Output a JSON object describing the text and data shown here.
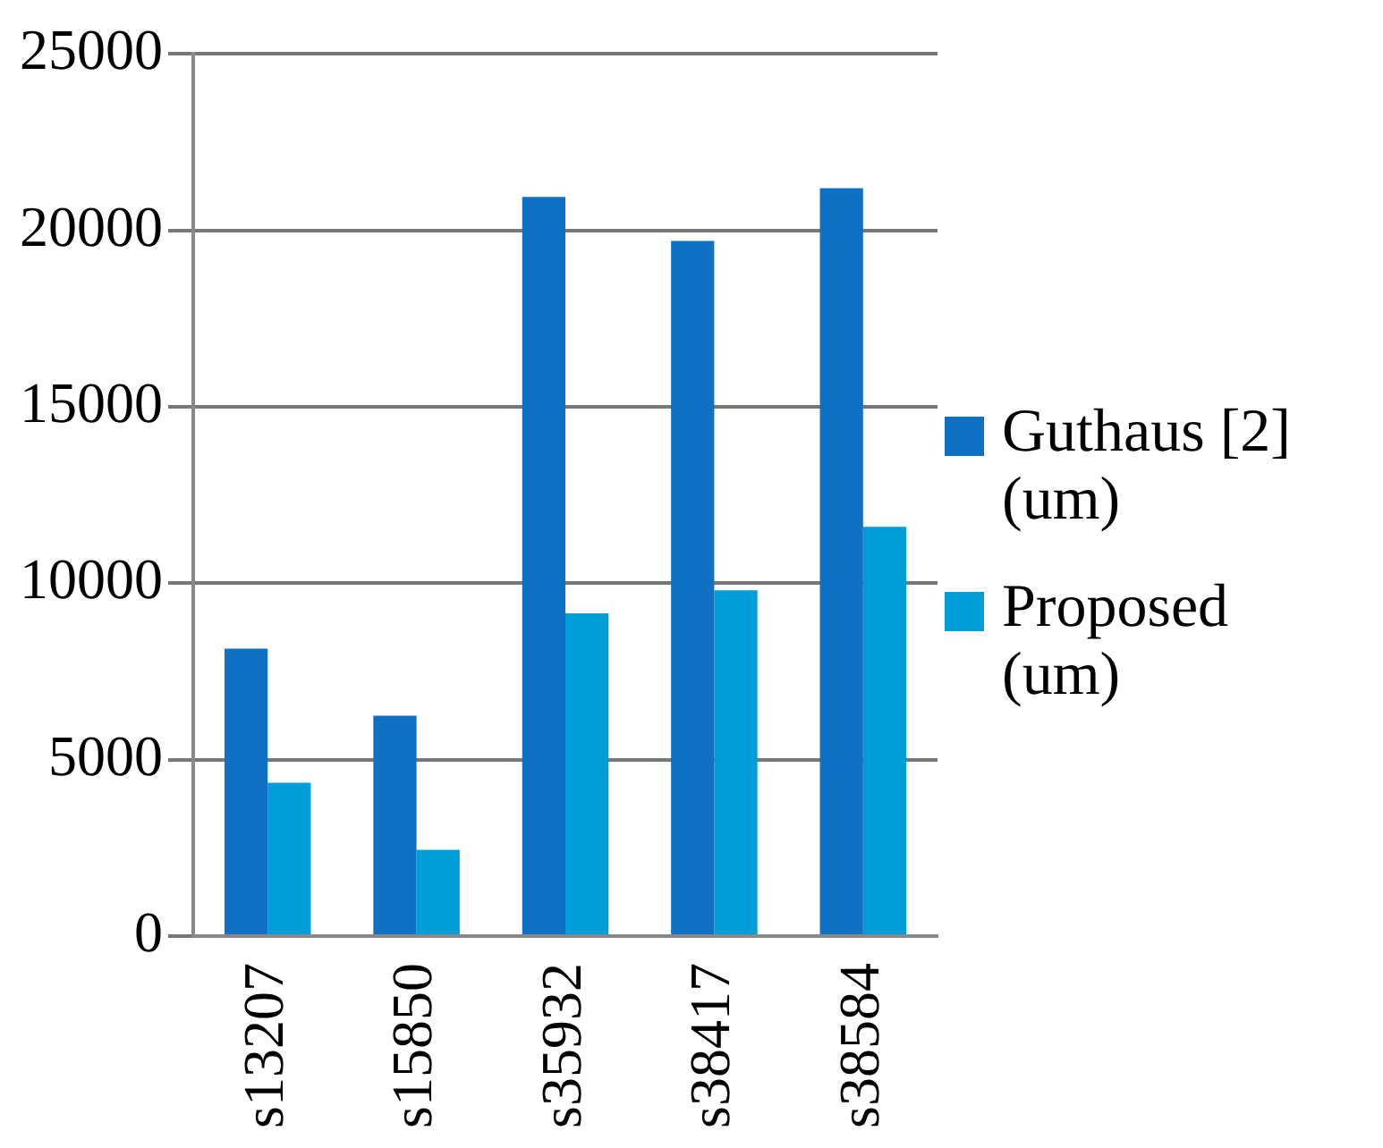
{
  "chart_data": {
    "type": "bar",
    "categories": [
      "s13207",
      "s15850",
      "s35932",
      "s38417",
      "s38584"
    ],
    "series": [
      {
        "name": "Guthaus [2] (um)",
        "color": "#1070c4",
        "values": [
          8150,
          6250,
          20950,
          19700,
          21200
        ]
      },
      {
        "name": "Proposed (um)",
        "color": "#009dd8",
        "values": [
          4350,
          2450,
          9150,
          9800,
          11600
        ]
      }
    ],
    "ylim": [
      0,
      25000
    ],
    "yticks": [
      0,
      5000,
      10000,
      15000,
      20000,
      25000
    ],
    "grid": "y",
    "legend": "right"
  }
}
